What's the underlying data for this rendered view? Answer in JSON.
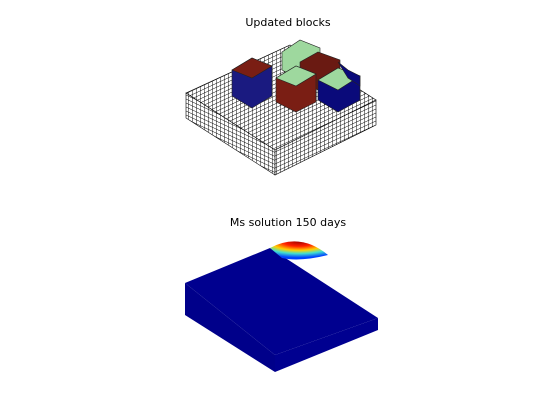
{
  "panels": [
    {
      "title": "Updated blocks"
    },
    {
      "title": "Ms solution 150 days"
    }
  ]
}
